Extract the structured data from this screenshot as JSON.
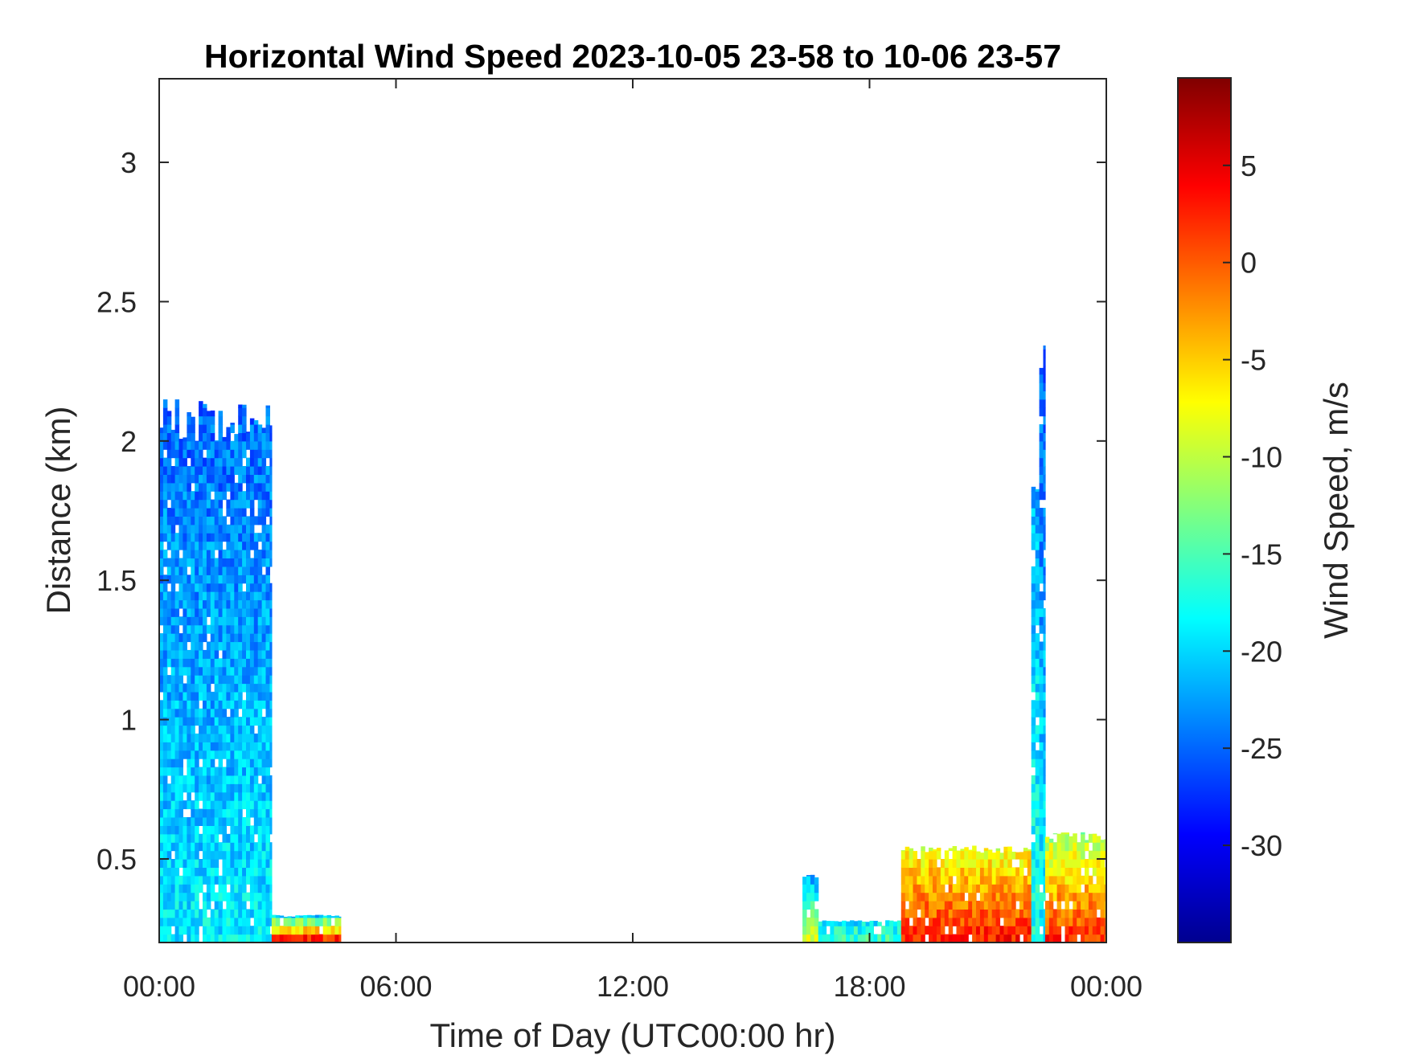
{
  "chart_data": {
    "type": "heatmap",
    "title": "Horizontal Wind Speed 2023-10-05 23-58 to 10-06 23-57",
    "xlabel": "Time of Day (UTC00:00 hr)",
    "ylabel": "Distance (km)",
    "colorbar_label": "Wind Speed, m/s",
    "colormap": "jet",
    "xlim": [
      0,
      24
    ],
    "ylim": [
      0.2,
      3.3
    ],
    "clim": [
      -35,
      9.5
    ],
    "x_ticks": [
      0,
      6,
      12,
      18,
      24
    ],
    "x_tick_labels": [
      "00:00",
      "06:00",
      "12:00",
      "18:00",
      "00:00"
    ],
    "y_ticks": [
      0.5,
      1,
      1.5,
      2,
      2.5,
      3
    ],
    "y_tick_labels": [
      "0.5",
      "1",
      "1.5",
      "2",
      "2.5",
      "3"
    ],
    "colorbar_ticks": [
      5,
      0,
      -5,
      -10,
      -15,
      -20,
      -25,
      -30
    ],
    "colorbar_tick_labels": [
      "5",
      "0",
      "-5",
      "-10",
      "-15",
      "-20",
      "-25",
      "-30"
    ],
    "grid": false,
    "regions": [
      {
        "t_start": 0.0,
        "t_end": 2.85,
        "z_min": 0.2,
        "z_max": 2.15,
        "speed_low_alt": -19,
        "speed_high_alt": -25
      },
      {
        "t_start": 2.85,
        "t_end": 4.6,
        "z_min": 0.2,
        "z_max": 0.3,
        "speed_low_alt": 2,
        "speed_high_alt": -23
      },
      {
        "t_start": 16.3,
        "t_end": 16.7,
        "z_min": 0.2,
        "z_max": 0.45,
        "speed_low_alt": -8,
        "speed_high_alt": -24
      },
      {
        "t_start": 16.7,
        "t_end": 18.8,
        "z_min": 0.2,
        "z_max": 0.28,
        "speed_low_alt": -16,
        "speed_high_alt": -20
      },
      {
        "t_start": 18.8,
        "t_end": 22.1,
        "z_min": 0.2,
        "z_max": 0.55,
        "speed_low_alt": 3,
        "speed_high_alt": -9
      },
      {
        "t_start": 22.1,
        "t_end": 22.3,
        "z_min": 0.2,
        "z_max": 1.85,
        "speed_low_alt": -17,
        "speed_high_alt": -22
      },
      {
        "t_start": 22.3,
        "t_end": 22.45,
        "z_min": 0.2,
        "z_max": 2.41,
        "speed_low_alt": -18,
        "speed_high_alt": -26
      },
      {
        "t_start": 22.45,
        "t_end": 24.0,
        "z_min": 0.2,
        "z_max": 0.6,
        "speed_low_alt": 2,
        "speed_high_alt": -12
      }
    ]
  }
}
